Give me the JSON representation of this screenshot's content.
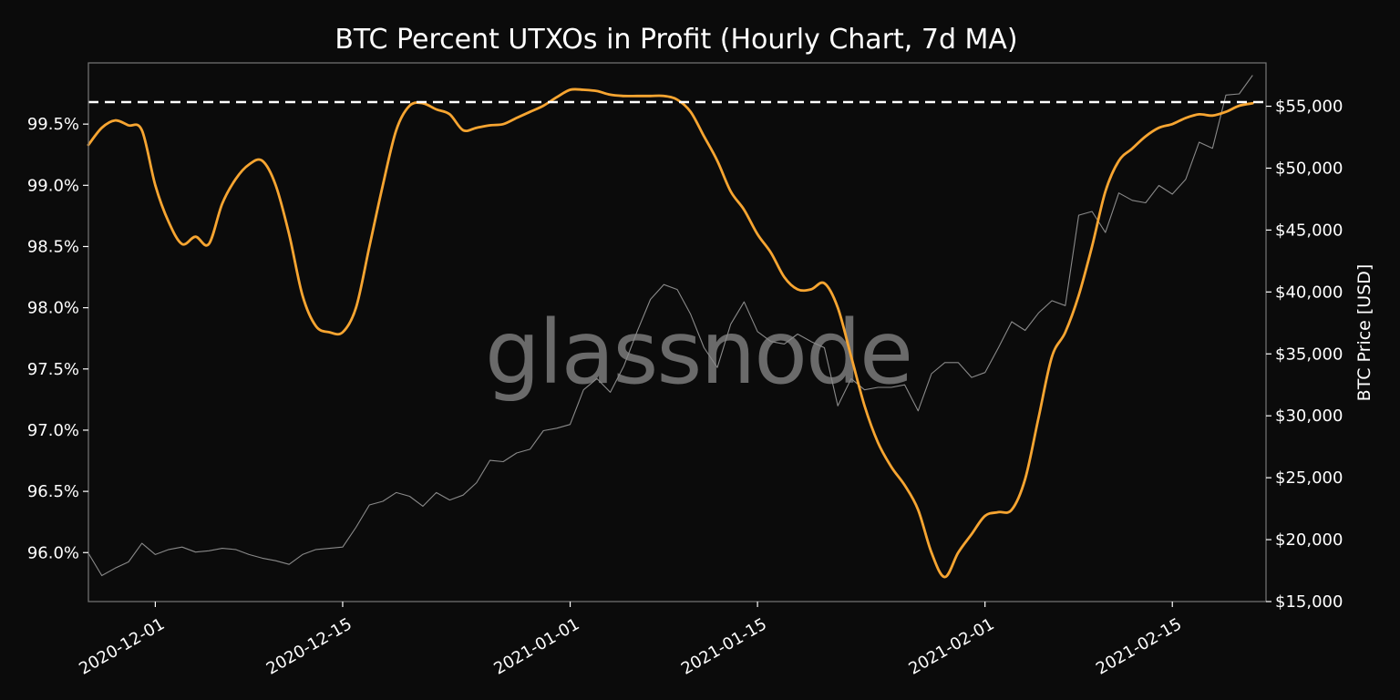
{
  "chart_data": {
    "type": "line",
    "title": "BTC Percent UTXOs in Profit (Hourly Chart, 7d MA)",
    "watermark": "glassnode",
    "xlabel": "",
    "ylabel_left": "",
    "ylabel_right": "BTC Price [USD]",
    "xlim": [
      "2020-11-26",
      "2021-02-22"
    ],
    "ylim_left": [
      95.6,
      100.0
    ],
    "ylim_right": [
      15000,
      58500
    ],
    "x_ticks": [
      "2020-12-01",
      "2020-12-15",
      "2021-01-01",
      "2021-01-15",
      "2021-02-01",
      "2021-02-15"
    ],
    "y_ticks_left": [
      "96.0%",
      "96.5%",
      "97.0%",
      "97.5%",
      "98.0%",
      "98.5%",
      "99.0%",
      "99.5%"
    ],
    "y_ticks_right": [
      "$15,000",
      "$20,000",
      "$25,000",
      "$30,000",
      "$35,000",
      "$40,000",
      "$45,000",
      "$50,000",
      "$55,000"
    ],
    "grid": false,
    "reference_line": {
      "axis": "left",
      "value": 99.68,
      "style": "dashed",
      "color": "#ffffff"
    },
    "colors": {
      "background": "#0b0b0b",
      "utxo": "#f7a531",
      "price": "#8a8a8a",
      "axes": "#777777"
    },
    "series": [
      {
        "axis": "left",
        "color": "#f7a531",
        "points": [
          [
            "2020-11-26",
            99.33
          ],
          [
            "2020-11-27",
            99.47
          ],
          [
            "2020-11-28",
            99.53
          ],
          [
            "2020-11-29",
            99.49
          ],
          [
            "2020-11-30",
            99.45
          ],
          [
            "2020-12-01",
            99.0
          ],
          [
            "2020-12-02",
            98.7
          ],
          [
            "2020-12-03",
            98.52
          ],
          [
            "2020-12-04",
            98.58
          ],
          [
            "2020-12-05",
            98.52
          ],
          [
            "2020-12-06",
            98.85
          ],
          [
            "2020-12-07",
            99.05
          ],
          [
            "2020-12-08",
            99.17
          ],
          [
            "2020-12-09",
            99.2
          ],
          [
            "2020-12-10",
            99.0
          ],
          [
            "2020-12-11",
            98.6
          ],
          [
            "2020-12-12",
            98.1
          ],
          [
            "2020-12-13",
            97.85
          ],
          [
            "2020-12-14",
            97.8
          ],
          [
            "2020-12-15",
            97.8
          ],
          [
            "2020-12-16",
            98.0
          ],
          [
            "2020-12-17",
            98.5
          ],
          [
            "2020-12-18",
            99.0
          ],
          [
            "2020-12-19",
            99.45
          ],
          [
            "2020-12-20",
            99.65
          ],
          [
            "2020-12-21",
            99.67
          ],
          [
            "2020-12-22",
            99.62
          ],
          [
            "2020-12-23",
            99.58
          ],
          [
            "2020-12-24",
            99.45
          ],
          [
            "2020-12-25",
            99.47
          ],
          [
            "2020-12-26",
            99.49
          ],
          [
            "2020-12-27",
            99.5
          ],
          [
            "2020-12-28",
            99.55
          ],
          [
            "2020-12-29",
            99.6
          ],
          [
            "2020-12-30",
            99.65
          ],
          [
            "2020-12-31",
            99.72
          ],
          [
            "2021-01-01",
            99.78
          ],
          [
            "2021-01-02",
            99.78
          ],
          [
            "2021-01-03",
            99.77
          ],
          [
            "2021-01-04",
            99.74
          ],
          [
            "2021-01-05",
            99.73
          ],
          [
            "2021-01-06",
            99.73
          ],
          [
            "2021-01-07",
            99.73
          ],
          [
            "2021-01-08",
            99.73
          ],
          [
            "2021-01-09",
            99.7
          ],
          [
            "2021-01-10",
            99.6
          ],
          [
            "2021-01-11",
            99.4
          ],
          [
            "2021-01-12",
            99.2
          ],
          [
            "2021-01-13",
            98.95
          ],
          [
            "2021-01-14",
            98.8
          ],
          [
            "2021-01-15",
            98.6
          ],
          [
            "2021-01-16",
            98.45
          ],
          [
            "2021-01-17",
            98.25
          ],
          [
            "2021-01-18",
            98.15
          ],
          [
            "2021-01-19",
            98.15
          ],
          [
            "2021-01-20",
            98.2
          ],
          [
            "2021-01-21",
            98.0
          ],
          [
            "2021-01-22",
            97.6
          ],
          [
            "2021-01-23",
            97.2
          ],
          [
            "2021-01-24",
            96.9
          ],
          [
            "2021-01-25",
            96.7
          ],
          [
            "2021-01-26",
            96.55
          ],
          [
            "2021-01-27",
            96.35
          ],
          [
            "2021-01-28",
            96.0
          ],
          [
            "2021-01-29",
            95.8
          ],
          [
            "2021-01-30",
            96.0
          ],
          [
            "2021-01-31",
            96.15
          ],
          [
            "2021-02-01",
            96.3
          ],
          [
            "2021-02-02",
            96.33
          ],
          [
            "2021-02-03",
            96.35
          ],
          [
            "2021-02-04",
            96.6
          ],
          [
            "2021-02-05",
            97.1
          ],
          [
            "2021-02-06",
            97.6
          ],
          [
            "2021-02-07",
            97.8
          ],
          [
            "2021-02-08",
            98.1
          ],
          [
            "2021-02-09",
            98.5
          ],
          [
            "2021-02-10",
            98.95
          ],
          [
            "2021-02-11",
            99.2
          ],
          [
            "2021-02-12",
            99.3
          ],
          [
            "2021-02-13",
            99.4
          ],
          [
            "2021-02-14",
            99.47
          ],
          [
            "2021-02-15",
            99.5
          ],
          [
            "2021-02-16",
            99.55
          ],
          [
            "2021-02-17",
            99.58
          ],
          [
            "2021-02-18",
            99.57
          ],
          [
            "2021-02-19",
            99.6
          ],
          [
            "2021-02-20",
            99.65
          ],
          [
            "2021-02-21",
            99.67
          ]
        ]
      },
      {
        "axis": "right",
        "color": "#8a8a8a",
        "points": [
          [
            "2020-11-26",
            18900
          ],
          [
            "2020-11-27",
            17100
          ],
          [
            "2020-11-28",
            17700
          ],
          [
            "2020-11-29",
            18200
          ],
          [
            "2020-11-30",
            19700
          ],
          [
            "2020-12-01",
            18800
          ],
          [
            "2020-12-02",
            19200
          ],
          [
            "2020-12-03",
            19400
          ],
          [
            "2020-12-04",
            19000
          ],
          [
            "2020-12-05",
            19100
          ],
          [
            "2020-12-06",
            19300
          ],
          [
            "2020-12-07",
            19200
          ],
          [
            "2020-12-08",
            18800
          ],
          [
            "2020-12-09",
            18500
          ],
          [
            "2020-12-10",
            18300
          ],
          [
            "2020-12-11",
            18000
          ],
          [
            "2020-12-12",
            18800
          ],
          [
            "2020-12-13",
            19200
          ],
          [
            "2020-12-14",
            19300
          ],
          [
            "2020-12-15",
            19400
          ],
          [
            "2020-12-16",
            21000
          ],
          [
            "2020-12-17",
            22800
          ],
          [
            "2020-12-18",
            23100
          ],
          [
            "2020-12-19",
            23800
          ],
          [
            "2020-12-20",
            23500
          ],
          [
            "2020-12-21",
            22700
          ],
          [
            "2020-12-22",
            23800
          ],
          [
            "2020-12-23",
            23200
          ],
          [
            "2020-12-24",
            23600
          ],
          [
            "2020-12-25",
            24600
          ],
          [
            "2020-12-26",
            26400
          ],
          [
            "2020-12-27",
            26300
          ],
          [
            "2020-12-28",
            27000
          ],
          [
            "2020-12-29",
            27300
          ],
          [
            "2020-12-30",
            28800
          ],
          [
            "2020-12-31",
            29000
          ],
          [
            "2021-01-01",
            29300
          ],
          [
            "2021-01-02",
            32100
          ],
          [
            "2021-01-03",
            33000
          ],
          [
            "2021-01-04",
            31900
          ],
          [
            "2021-01-05",
            34000
          ],
          [
            "2021-01-06",
            36800
          ],
          [
            "2021-01-07",
            39400
          ],
          [
            "2021-01-08",
            40600
          ],
          [
            "2021-01-09",
            40200
          ],
          [
            "2021-01-10",
            38200
          ],
          [
            "2021-01-11",
            35500
          ],
          [
            "2021-01-12",
            33900
          ],
          [
            "2021-01-13",
            37400
          ],
          [
            "2021-01-14",
            39200
          ],
          [
            "2021-01-15",
            36800
          ],
          [
            "2021-01-16",
            36000
          ],
          [
            "2021-01-17",
            35800
          ],
          [
            "2021-01-18",
            36600
          ],
          [
            "2021-01-19",
            36000
          ],
          [
            "2021-01-20",
            35500
          ],
          [
            "2021-01-21",
            30800
          ],
          [
            "2021-01-22",
            33000
          ],
          [
            "2021-01-23",
            32100
          ],
          [
            "2021-01-24",
            32300
          ],
          [
            "2021-01-25",
            32300
          ],
          [
            "2021-01-26",
            32500
          ],
          [
            "2021-01-27",
            30400
          ],
          [
            "2021-01-28",
            33400
          ],
          [
            "2021-01-29",
            34300
          ],
          [
            "2021-01-30",
            34300
          ],
          [
            "2021-01-31",
            33100
          ],
          [
            "2021-02-01",
            33500
          ],
          [
            "2021-02-02",
            35500
          ],
          [
            "2021-02-03",
            37600
          ],
          [
            "2021-02-04",
            36900
          ],
          [
            "2021-02-05",
            38300
          ],
          [
            "2021-02-06",
            39300
          ],
          [
            "2021-02-07",
            38900
          ],
          [
            "2021-02-08",
            46200
          ],
          [
            "2021-02-09",
            46500
          ],
          [
            "2021-02-10",
            44800
          ],
          [
            "2021-02-11",
            48000
          ],
          [
            "2021-02-12",
            47400
          ],
          [
            "2021-02-13",
            47200
          ],
          [
            "2021-02-14",
            48600
          ],
          [
            "2021-02-15",
            47900
          ],
          [
            "2021-02-16",
            49100
          ],
          [
            "2021-02-17",
            52100
          ],
          [
            "2021-02-18",
            51600
          ],
          [
            "2021-02-19",
            55900
          ],
          [
            "2021-02-20",
            56000
          ],
          [
            "2021-02-21",
            57500
          ]
        ]
      }
    ]
  }
}
